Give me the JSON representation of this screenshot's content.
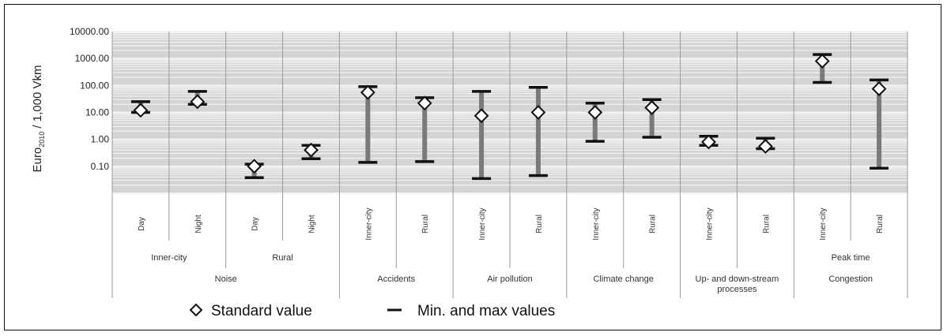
{
  "chart_data": {
    "type": "scatter",
    "y_scale": "log",
    "ylim": [
      0.01,
      10000
    ],
    "ylabel": {
      "main": "Euro",
      "sub": "2010",
      "tail": " / 1,000 Vkm"
    },
    "y_ticks": [
      {
        "value": 10000,
        "label": "10000.00"
      },
      {
        "value": 1000,
        "label": "1000.00"
      },
      {
        "value": 100,
        "label": "100.00"
      },
      {
        "value": 10,
        "label": "10.00"
      },
      {
        "value": 1,
        "label": "1.00"
      },
      {
        "value": 0.1,
        "label": "0.10"
      }
    ],
    "grid": true,
    "categories": [
      {
        "label": "Day",
        "standard": 12,
        "min": 10,
        "max": 25
      },
      {
        "label": "Night",
        "standard": 25,
        "min": 20,
        "max": 60
      },
      {
        "label": "Day",
        "standard": 0.1,
        "min": 0.038,
        "max": 0.12
      },
      {
        "label": "Night",
        "standard": 0.4,
        "min": 0.19,
        "max": 0.6
      },
      {
        "label": "Inner-city",
        "standard": 55,
        "min": 0.14,
        "max": 90
      },
      {
        "label": "Rural",
        "standard": 22,
        "min": 0.15,
        "max": 35
      },
      {
        "label": "Inner-city",
        "standard": 7.5,
        "min": 0.035,
        "max": 60
      },
      {
        "label": "Rural",
        "standard": 10,
        "min": 0.045,
        "max": 85
      },
      {
        "label": "Inner-city",
        "standard": 10,
        "min": 0.85,
        "max": 22
      },
      {
        "label": "Rural",
        "standard": 15,
        "min": 1.2,
        "max": 30
      },
      {
        "label": "Inner-city",
        "standard": 0.8,
        "min": 0.6,
        "max": 1.3
      },
      {
        "label": "Rural",
        "standard": 0.55,
        "min": 0.45,
        "max": 1.1
      },
      {
        "label": "Inner-city",
        "standard": 800,
        "min": 130,
        "max": 1400
      },
      {
        "label": "Rural",
        "standard": 75,
        "min": 0.085,
        "max": 160
      }
    ],
    "subgroups": [
      {
        "label": "Inner-city",
        "span": [
          0,
          1
        ]
      },
      {
        "label": "Rural",
        "span": [
          2,
          3
        ]
      },
      {
        "label": "Peak time",
        "span": [
          12,
          13
        ]
      }
    ],
    "groups": [
      {
        "label": "Noise",
        "span": [
          0,
          3
        ]
      },
      {
        "label": "Accidents",
        "span": [
          4,
          5
        ]
      },
      {
        "label": "Air pollution",
        "span": [
          6,
          7
        ]
      },
      {
        "label": "Climate change",
        "span": [
          8,
          9
        ]
      },
      {
        "label": "Up- and down-stream processes",
        "lines": [
          "Up- and down-stream",
          "processes"
        ],
        "span": [
          10,
          11
        ]
      },
      {
        "label": "Congestion",
        "span": [
          12,
          13
        ]
      }
    ],
    "legend": [
      {
        "marker": "diamond",
        "label": "Standard value"
      },
      {
        "marker": "dash",
        "label": "Min. and max values"
      }
    ],
    "colors": {
      "grid_bg": "#d4d4d4",
      "grid_line": "#f2f2f2",
      "range_bar": "#7a7a7a",
      "cap": "#111111",
      "divider": "#9a9a9a"
    }
  }
}
